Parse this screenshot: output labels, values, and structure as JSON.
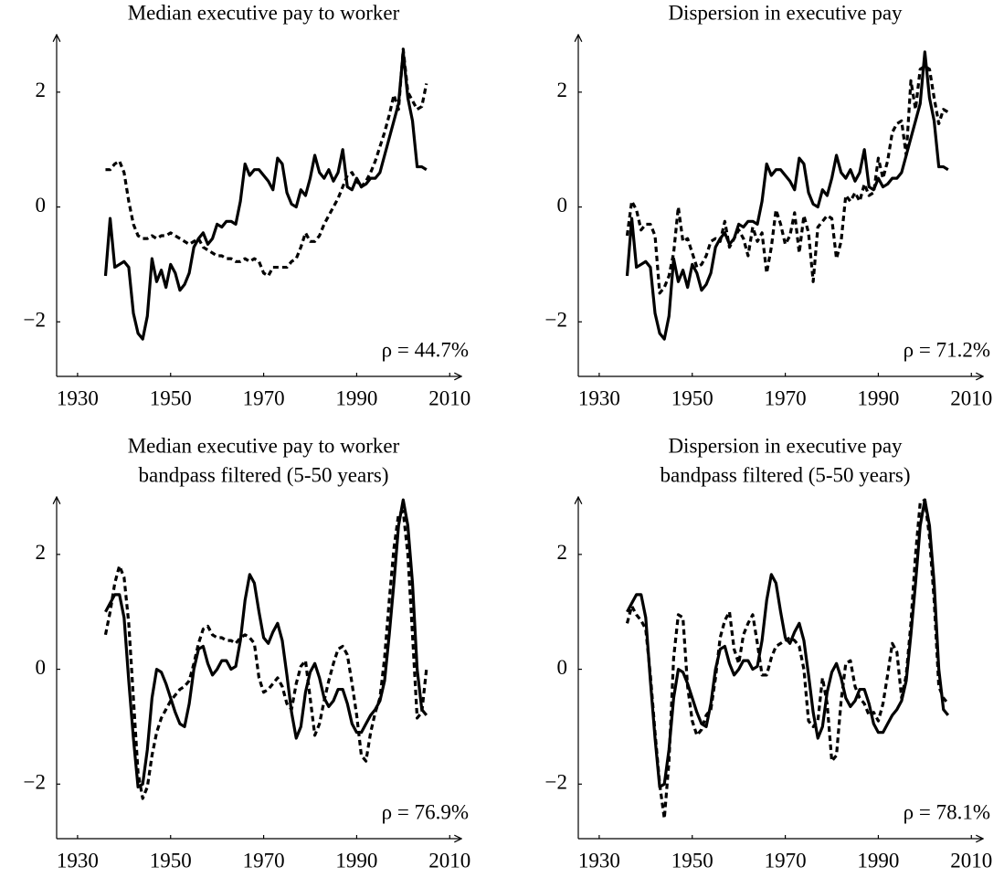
{
  "chart_data": [
    {
      "type": "line",
      "title": "Median executive pay to worker",
      "annotation": "ρ = 44.7%",
      "x": [
        1936,
        1937,
        1938,
        1939,
        1940,
        1941,
        1942,
        1943,
        1944,
        1945,
        1946,
        1947,
        1948,
        1949,
        1950,
        1951,
        1952,
        1953,
        1954,
        1955,
        1956,
        1957,
        1958,
        1959,
        1960,
        1961,
        1962,
        1963,
        1964,
        1965,
        1966,
        1967,
        1968,
        1969,
        1970,
        1971,
        1972,
        1973,
        1974,
        1975,
        1976,
        1977,
        1978,
        1979,
        1980,
        1981,
        1982,
        1983,
        1984,
        1985,
        1986,
        1987,
        1988,
        1989,
        1990,
        1991,
        1992,
        1993,
        1994,
        1995,
        1996,
        1997,
        1998,
        1999,
        2000,
        2001,
        2002,
        2003,
        2004,
        2005
      ],
      "series": [
        {
          "color": "#000000",
          "line_style": "solid",
          "values": [
            -1.2,
            -0.2,
            -1.05,
            -1.0,
            -0.95,
            -1.05,
            -1.85,
            -2.2,
            -2.3,
            -1.9,
            -0.9,
            -1.3,
            -1.1,
            -1.4,
            -1.0,
            -1.15,
            -1.45,
            -1.35,
            -1.15,
            -0.7,
            -0.55,
            -0.45,
            -0.65,
            -0.55,
            -0.3,
            -0.35,
            -0.25,
            -0.25,
            -0.3,
            0.1,
            0.75,
            0.55,
            0.65,
            0.65,
            0.55,
            0.45,
            0.3,
            0.85,
            0.75,
            0.25,
            0.05,
            0.0,
            0.3,
            0.2,
            0.5,
            0.9,
            0.6,
            0.5,
            0.65,
            0.45,
            0.6,
            1.0,
            0.35,
            0.3,
            0.5,
            0.35,
            0.4,
            0.5,
            0.5,
            0.6,
            0.9,
            1.2,
            1.5,
            1.8,
            2.7,
            1.9,
            1.5,
            0.7,
            0.7,
            0.65
          ]
        },
        {
          "color": "#000000",
          "line_style": "dashed",
          "values": [
            0.65,
            0.65,
            0.75,
            0.8,
            0.6,
            0.1,
            -0.3,
            -0.5,
            -0.55,
            -0.55,
            -0.5,
            -0.55,
            -0.5,
            -0.5,
            -0.45,
            -0.5,
            -0.55,
            -0.6,
            -0.65,
            -0.6,
            -0.55,
            -0.7,
            -0.75,
            -0.8,
            -0.85,
            -0.85,
            -0.9,
            -0.9,
            -0.95,
            -0.95,
            -0.9,
            -0.95,
            -0.9,
            -0.95,
            -1.15,
            -1.2,
            -1.05,
            -1.05,
            -1.05,
            -1.05,
            -0.95,
            -0.9,
            -0.7,
            -0.45,
            -0.6,
            -0.6,
            -0.5,
            -0.3,
            -0.15,
            0.0,
            0.15,
            0.35,
            0.55,
            0.6,
            0.45,
            0.35,
            0.45,
            0.6,
            0.8,
            1.05,
            1.3,
            1.6,
            1.95,
            1.7,
            2.75,
            2.0,
            1.85,
            1.7,
            1.75,
            2.15
          ]
        }
      ],
      "xlim": [
        1925.5,
        2012.5
      ],
      "ylim": [
        -2.95,
        3.0
      ],
      "xticks": [
        1930,
        1950,
        1970,
        1990,
        2010
      ],
      "yticks": [
        {
          "value": -2,
          "label": "−2"
        },
        0,
        2
      ]
    },
    {
      "type": "line",
      "title": "Dispersion in executive pay",
      "annotation": "ρ = 71.2%",
      "x": [
        1936,
        1937,
        1938,
        1939,
        1940,
        1941,
        1942,
        1943,
        1944,
        1945,
        1946,
        1947,
        1948,
        1949,
        1950,
        1951,
        1952,
        1953,
        1954,
        1955,
        1956,
        1957,
        1958,
        1959,
        1960,
        1961,
        1962,
        1963,
        1964,
        1965,
        1966,
        1967,
        1968,
        1969,
        1970,
        1971,
        1972,
        1973,
        1974,
        1975,
        1976,
        1977,
        1978,
        1979,
        1980,
        1981,
        1982,
        1983,
        1984,
        1985,
        1986,
        1987,
        1988,
        1989,
        1990,
        1991,
        1992,
        1993,
        1994,
        1995,
        1996,
        1997,
        1998,
        1999,
        2000,
        2001,
        2002,
        2003,
        2004,
        2005
      ],
      "series": [
        {
          "color": "#000000",
          "line_style": "solid",
          "values": [
            -1.2,
            -0.2,
            -1.05,
            -1.0,
            -0.95,
            -1.05,
            -1.85,
            -2.2,
            -2.3,
            -1.9,
            -0.9,
            -1.3,
            -1.1,
            -1.4,
            -1.0,
            -1.15,
            -1.45,
            -1.35,
            -1.15,
            -0.7,
            -0.55,
            -0.45,
            -0.65,
            -0.55,
            -0.3,
            -0.35,
            -0.25,
            -0.25,
            -0.3,
            0.1,
            0.75,
            0.55,
            0.65,
            0.65,
            0.55,
            0.45,
            0.3,
            0.85,
            0.75,
            0.25,
            0.05,
            0.0,
            0.3,
            0.2,
            0.5,
            0.9,
            0.6,
            0.5,
            0.65,
            0.45,
            0.6,
            1.0,
            0.35,
            0.3,
            0.5,
            0.35,
            0.4,
            0.5,
            0.5,
            0.6,
            0.9,
            1.2,
            1.5,
            1.8,
            2.7,
            1.9,
            1.5,
            0.7,
            0.7,
            0.65
          ]
        },
        {
          "color": "#000000",
          "line_style": "dashed",
          "values": [
            -0.5,
            0.1,
            -0.05,
            -0.4,
            -0.3,
            -0.3,
            -0.5,
            -1.5,
            -1.4,
            -1.2,
            -0.8,
            0.0,
            -0.6,
            -0.55,
            -0.8,
            -1.05,
            -1.0,
            -0.85,
            -0.6,
            -0.55,
            -0.6,
            -0.25,
            -0.7,
            -0.55,
            -0.4,
            -0.55,
            -0.85,
            -0.35,
            -0.6,
            -0.45,
            -1.15,
            -0.7,
            -0.05,
            -0.3,
            -0.65,
            -0.5,
            -0.1,
            -0.8,
            -0.15,
            -0.45,
            -1.3,
            -0.35,
            -0.25,
            -0.15,
            -0.2,
            -0.9,
            -0.6,
            0.2,
            0.1,
            0.25,
            0.1,
            0.4,
            0.2,
            0.25,
            0.85,
            0.5,
            0.8,
            1.3,
            1.45,
            1.5,
            0.9,
            2.2,
            1.7,
            2.4,
            2.45,
            2.4,
            1.9,
            1.45,
            1.7,
            1.65
          ]
        }
      ],
      "xlim": [
        1925.5,
        2012.5
      ],
      "ylim": [
        -2.95,
        3.0
      ],
      "xticks": [
        1930,
        1950,
        1970,
        1990,
        2010
      ],
      "yticks": [
        {
          "value": -2,
          "label": "−2"
        },
        0,
        2
      ]
    },
    {
      "type": "line",
      "title": "Median executive pay to worker",
      "subtitle": "bandpass filtered (5-50 years)",
      "annotation": "ρ = 76.9%",
      "x": [
        1936,
        1937,
        1938,
        1939,
        1940,
        1941,
        1942,
        1943,
        1944,
        1945,
        1946,
        1947,
        1948,
        1949,
        1950,
        1951,
        1952,
        1953,
        1954,
        1955,
        1956,
        1957,
        1958,
        1959,
        1960,
        1961,
        1962,
        1963,
        1964,
        1965,
        1966,
        1967,
        1968,
        1969,
        1970,
        1971,
        1972,
        1973,
        1974,
        1975,
        1976,
        1977,
        1978,
        1979,
        1980,
        1981,
        1982,
        1983,
        1984,
        1985,
        1986,
        1987,
        1988,
        1989,
        1990,
        1991,
        1992,
        1993,
        1994,
        1995,
        1996,
        1997,
        1998,
        1999,
        2000,
        2001,
        2002,
        2003,
        2004,
        2005
      ],
      "series": [
        {
          "color": "#000000",
          "line_style": "solid",
          "values": [
            1.0,
            1.15,
            1.3,
            1.3,
            0.9,
            -0.2,
            -1.2,
            -2.05,
            -2.0,
            -1.4,
            -0.5,
            0.0,
            -0.05,
            -0.25,
            -0.5,
            -0.75,
            -0.95,
            -1.0,
            -0.6,
            0.0,
            0.35,
            0.4,
            0.1,
            -0.1,
            0.0,
            0.15,
            0.15,
            0.0,
            0.05,
            0.5,
            1.2,
            1.65,
            1.5,
            1.0,
            0.55,
            0.45,
            0.65,
            0.8,
            0.5,
            -0.1,
            -0.75,
            -1.2,
            -1.0,
            -0.4,
            -0.05,
            0.1,
            -0.15,
            -0.5,
            -0.65,
            -0.55,
            -0.35,
            -0.35,
            -0.6,
            -0.95,
            -1.1,
            -1.1,
            -0.95,
            -0.8,
            -0.7,
            -0.55,
            -0.2,
            0.6,
            1.5,
            2.5,
            2.95,
            2.5,
            1.5,
            0.0,
            -0.7,
            -0.8
          ]
        },
        {
          "color": "#000000",
          "line_style": "dashed",
          "values": [
            0.6,
            1.0,
            1.5,
            1.8,
            1.6,
            0.8,
            -0.5,
            -1.8,
            -2.25,
            -2.05,
            -1.5,
            -1.1,
            -0.85,
            -0.7,
            -0.55,
            -0.45,
            -0.35,
            -0.3,
            -0.2,
            0.1,
            0.45,
            0.7,
            0.75,
            0.6,
            0.55,
            0.55,
            0.5,
            0.5,
            0.45,
            0.55,
            0.6,
            0.55,
            0.45,
            -0.15,
            -0.4,
            -0.35,
            -0.25,
            -0.15,
            -0.3,
            -0.6,
            -0.7,
            -0.25,
            0.05,
            0.15,
            -0.5,
            -1.15,
            -0.95,
            -0.55,
            -0.2,
            0.1,
            0.35,
            0.4,
            0.25,
            -0.25,
            -0.8,
            -1.5,
            -1.6,
            -1.1,
            -0.75,
            -0.5,
            0.2,
            1.2,
            2.1,
            2.7,
            2.75,
            2.0,
            0.6,
            -0.85,
            -0.75,
            0.0
          ]
        }
      ],
      "xlim": [
        1925.5,
        2012.5
      ],
      "ylim": [
        -2.95,
        3.0
      ],
      "xticks": [
        1930,
        1950,
        1970,
        1990,
        2010
      ],
      "yticks": [
        {
          "value": -2,
          "label": "−2"
        },
        0,
        2
      ]
    },
    {
      "type": "line",
      "title": "Dispersion in executive pay",
      "subtitle": "bandpass filtered (5-50 years)",
      "annotation": "ρ = 78.1%",
      "x": [
        1936,
        1937,
        1938,
        1939,
        1940,
        1941,
        1942,
        1943,
        1944,
        1945,
        1946,
        1947,
        1948,
        1949,
        1950,
        1951,
        1952,
        1953,
        1954,
        1955,
        1956,
        1957,
        1958,
        1959,
        1960,
        1961,
        1962,
        1963,
        1964,
        1965,
        1966,
        1967,
        1968,
        1969,
        1970,
        1971,
        1972,
        1973,
        1974,
        1975,
        1976,
        1977,
        1978,
        1979,
        1980,
        1981,
        1982,
        1983,
        1984,
        1985,
        1986,
        1987,
        1988,
        1989,
        1990,
        1991,
        1992,
        1993,
        1994,
        1995,
        1996,
        1997,
        1998,
        1999,
        2000,
        2001,
        2002,
        2003,
        2004,
        2005
      ],
      "series": [
        {
          "color": "#000000",
          "line_style": "solid",
          "values": [
            1.0,
            1.15,
            1.3,
            1.3,
            0.9,
            -0.2,
            -1.2,
            -2.05,
            -2.0,
            -1.4,
            -0.5,
            0.0,
            -0.05,
            -0.25,
            -0.5,
            -0.75,
            -0.95,
            -1.0,
            -0.6,
            0.0,
            0.35,
            0.4,
            0.1,
            -0.1,
            0.0,
            0.15,
            0.15,
            0.0,
            0.05,
            0.5,
            1.2,
            1.65,
            1.5,
            1.0,
            0.55,
            0.45,
            0.65,
            0.8,
            0.5,
            -0.1,
            -0.75,
            -1.2,
            -1.0,
            -0.4,
            -0.05,
            0.1,
            -0.15,
            -0.5,
            -0.65,
            -0.55,
            -0.35,
            -0.35,
            -0.6,
            -0.95,
            -1.1,
            -1.1,
            -0.95,
            -0.8,
            -0.7,
            -0.55,
            -0.2,
            0.6,
            1.5,
            2.5,
            2.95,
            2.5,
            1.5,
            0.0,
            -0.7,
            -0.8
          ]
        },
        {
          "color": "#000000",
          "line_style": "dashed",
          "values": [
            0.8,
            1.1,
            0.95,
            0.85,
            0.7,
            -0.1,
            -1.1,
            -2.0,
            -2.6,
            -1.6,
            0.2,
            0.95,
            0.9,
            -0.3,
            -0.9,
            -1.15,
            -1.05,
            -0.8,
            -0.7,
            -0.15,
            0.55,
            0.85,
            1.0,
            0.35,
            0.1,
            0.6,
            0.8,
            0.95,
            0.45,
            -0.1,
            -0.1,
            0.2,
            0.4,
            0.45,
            0.5,
            0.55,
            0.5,
            0.4,
            0.0,
            -0.9,
            -1.0,
            -0.9,
            -0.15,
            -0.6,
            -1.6,
            -1.5,
            -0.55,
            0.1,
            0.15,
            -0.3,
            -0.5,
            -0.6,
            -0.8,
            -0.75,
            -0.9,
            -0.6,
            -0.1,
            0.45,
            0.3,
            -0.5,
            -0.1,
            0.8,
            2.0,
            2.9,
            2.95,
            2.3,
            1.2,
            -0.3,
            -0.5,
            -0.6
          ]
        }
      ],
      "xlim": [
        1925.5,
        2012.5
      ],
      "ylim": [
        -2.95,
        3.0
      ],
      "xticks": [
        1930,
        1950,
        1970,
        1990,
        2010
      ],
      "yticks": [
        {
          "value": -2,
          "label": "−2"
        },
        0,
        2
      ]
    }
  ]
}
